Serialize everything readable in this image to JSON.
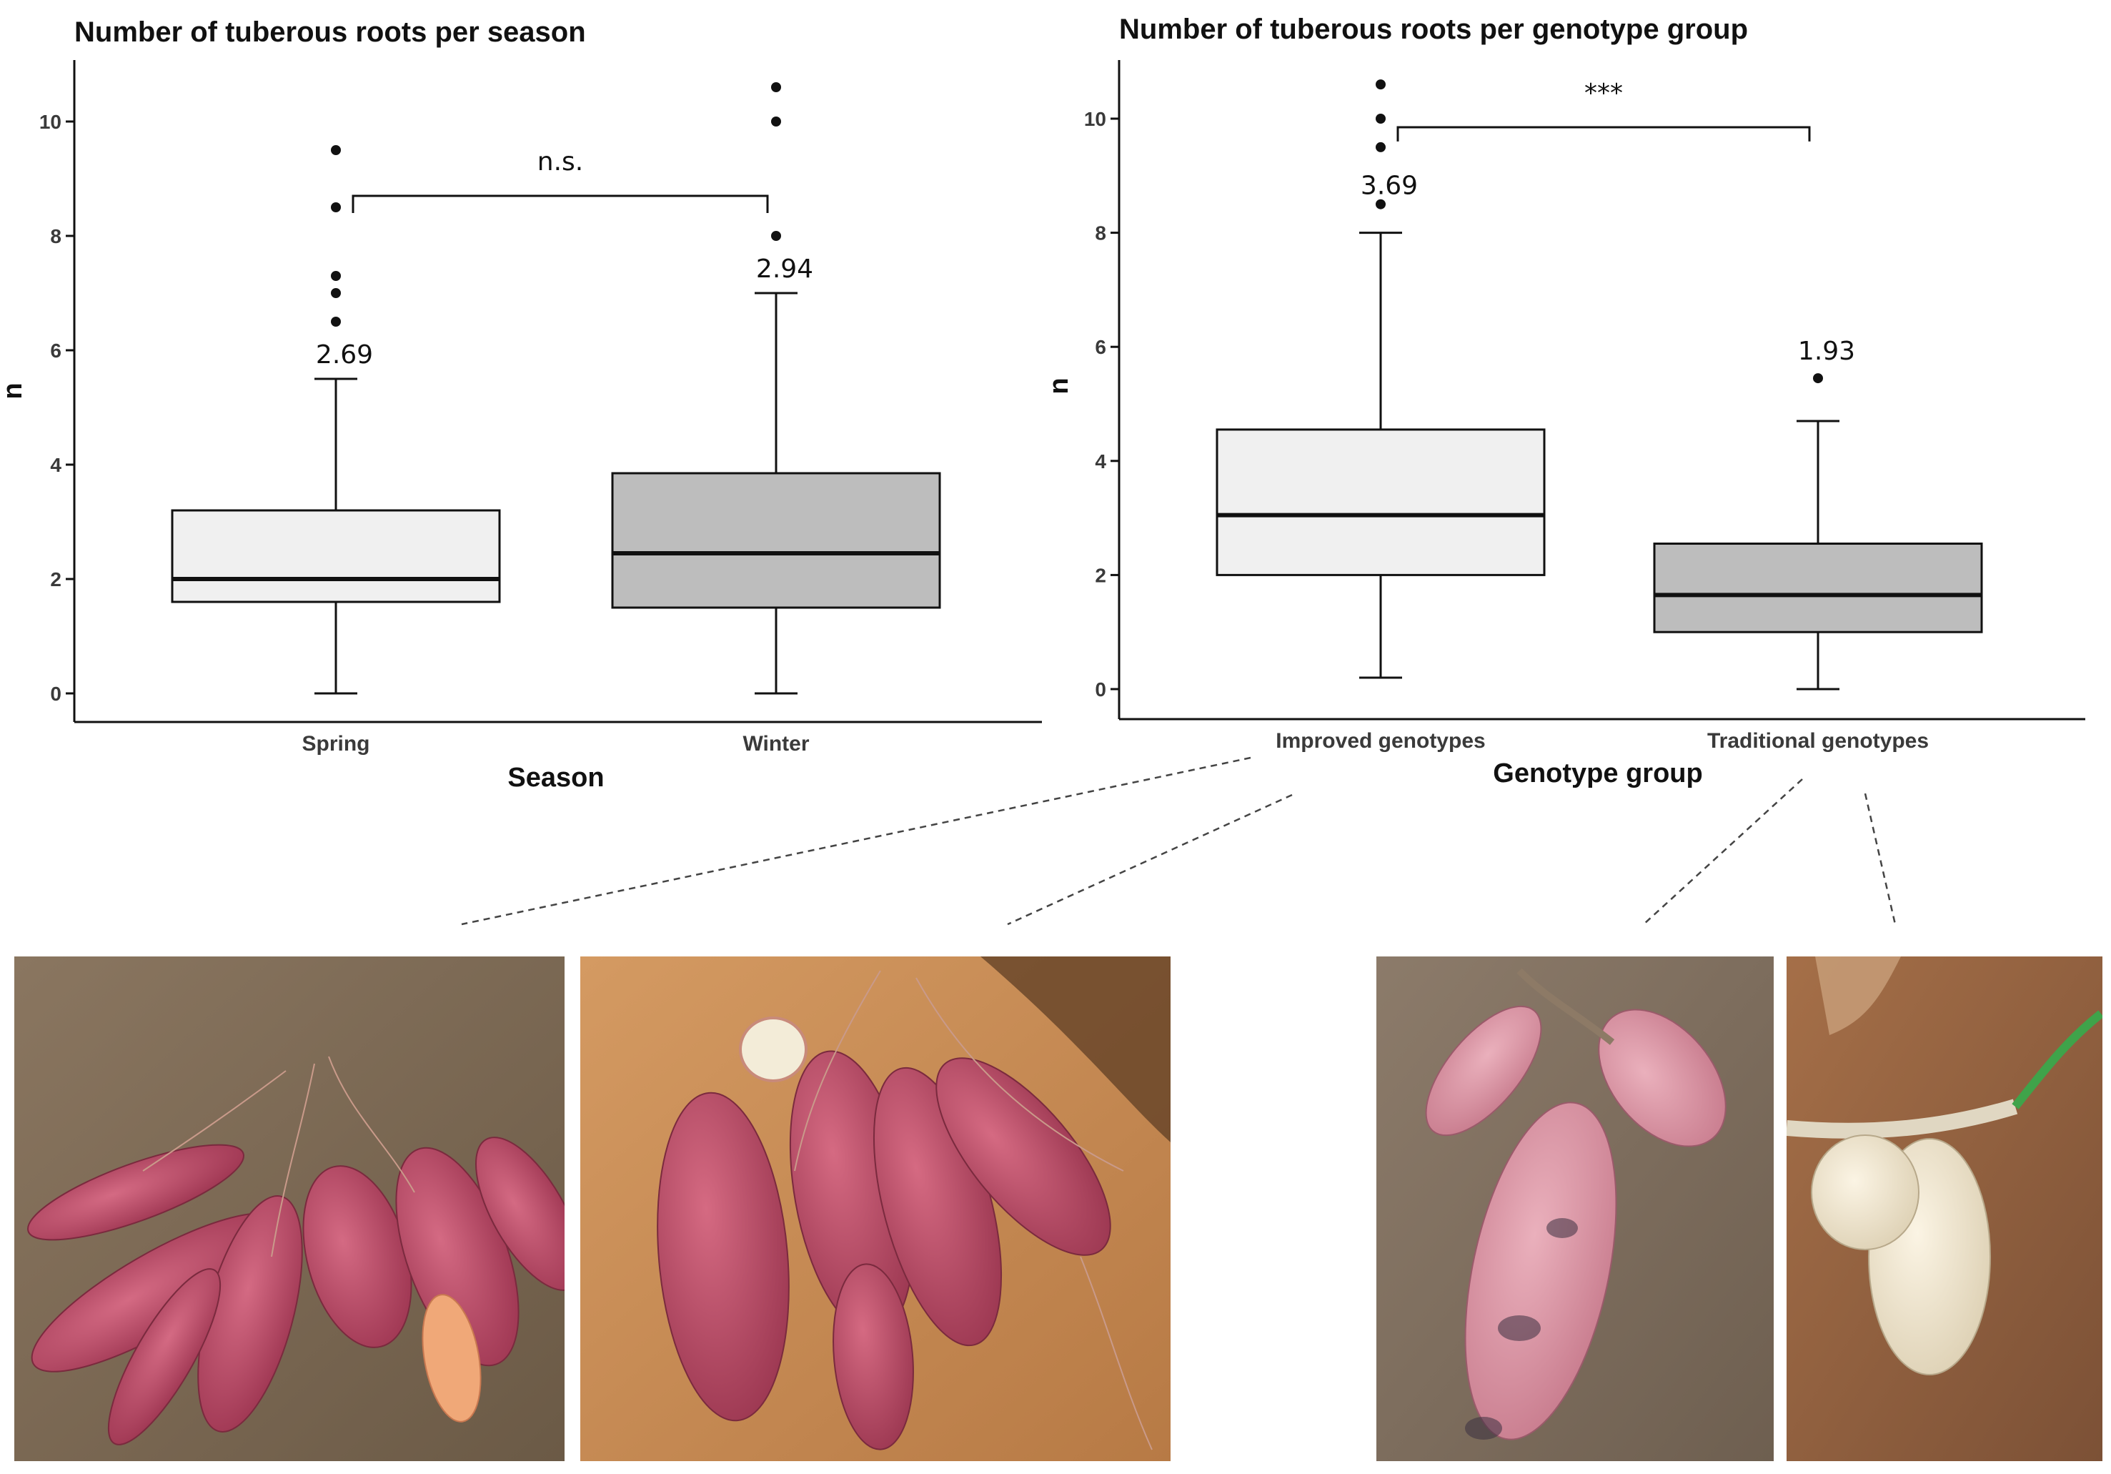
{
  "chart_data": [
    {
      "type": "box",
      "title": "Number of tuberous roots per season",
      "xlabel": "Season",
      "ylabel": "n",
      "ylim": [
        0,
        11
      ],
      "yticks": [
        0,
        2,
        4,
        6,
        8,
        10
      ],
      "categories": [
        "Spring",
        "Winter"
      ],
      "boxes": [
        {
          "category": "Spring",
          "min": 0,
          "q1": 1.6,
          "median": 2.0,
          "q3": 3.2,
          "max": 5.5,
          "outliers": [
            6.5,
            7.0,
            7.3,
            8.5,
            9.5
          ],
          "mean_label": "2.69",
          "fill": "#f0f0f0"
        },
        {
          "category": "Winter",
          "min": 0,
          "q1": 1.5,
          "median": 2.45,
          "q3": 3.85,
          "max": 7.0,
          "outliers": [
            8.0,
            10.0,
            10.6
          ],
          "mean_label": "2.94",
          "fill": "#bdbdbd"
        }
      ],
      "significance": {
        "label": "n.s.",
        "y": 8.7,
        "tick_bottom": 8.4
      }
    },
    {
      "type": "box",
      "title": "Number of tuberous roots per genotype group",
      "xlabel": "Genotype group",
      "ylabel": "n",
      "ylim": [
        0,
        11
      ],
      "yticks": [
        0,
        2,
        4,
        6,
        8,
        10
      ],
      "categories": [
        "Improved genotypes",
        "Traditional genotypes"
      ],
      "boxes": [
        {
          "category": "Improved genotypes",
          "min": 0.2,
          "q1": 2.0,
          "median": 3.05,
          "q3": 4.55,
          "max": 8.0,
          "outliers": [
            8.5,
            9.5,
            10.0,
            10.6
          ],
          "mean_label": "3.69",
          "fill": "#f0f0f0"
        },
        {
          "category": "Traditional genotypes",
          "min": 0,
          "q1": 1.0,
          "median": 1.65,
          "q3": 2.55,
          "max": 4.7,
          "outliers": [
            5.45
          ],
          "mean_label": "1.93",
          "fill": "#bdbdbd"
        }
      ],
      "significance": {
        "label": "***",
        "y": 9.85,
        "tick_bottom": 9.6
      }
    }
  ],
  "photos": [
    {
      "name": "improved-genotype-photo-1",
      "depicts": "red-skinned sweet potato roots on soil"
    },
    {
      "name": "improved-genotype-photo-2",
      "depicts": "red-skinned sweet potato roots on soil"
    },
    {
      "name": "traditional-genotype-photo-1",
      "depicts": "pale pink sweet potato roots on soil"
    },
    {
      "name": "traditional-genotype-photo-2",
      "depicts": "white sweet potato roots on soil"
    }
  ],
  "colors": {
    "box_light": "#f0f0f0",
    "box_dark": "#bdbdbd",
    "soil_dark": "#6b5a46",
    "soil_light": "#c98d56",
    "root_red": "#b8485e",
    "root_pink": "#d98a9a",
    "root_white": "#eee2cc"
  }
}
